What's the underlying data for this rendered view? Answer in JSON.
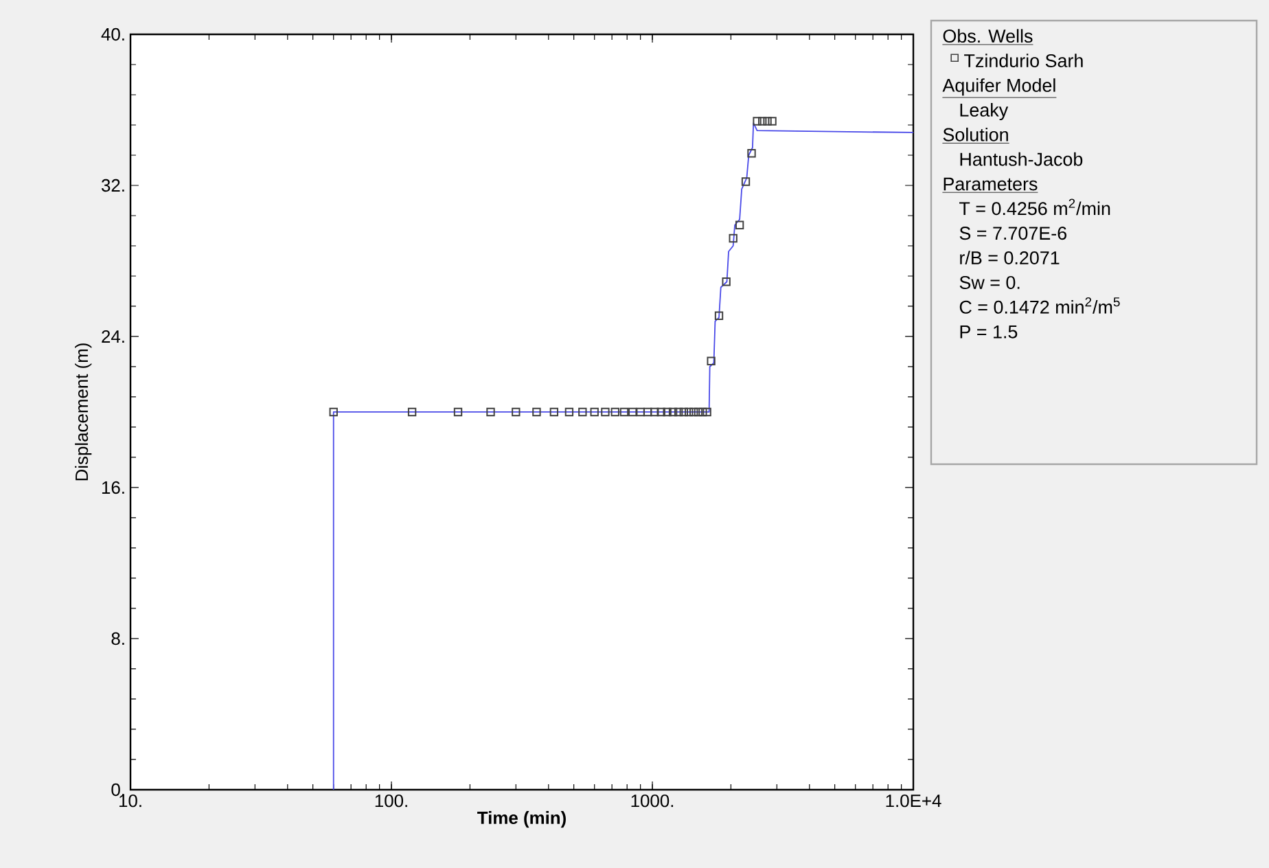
{
  "chart_data": {
    "type": "scatter",
    "xlabel": "Time (min)",
    "ylabel": "Displacement (m)",
    "log": "x",
    "xlim": [
      10,
      10000
    ],
    "ylim": [
      0,
      40
    ],
    "xticks": [
      {
        "value": 10,
        "label": "10."
      },
      {
        "value": 100,
        "label": "100."
      },
      {
        "value": 1000,
        "label": "1000."
      },
      {
        "value": 10000,
        "label": "1.0E+4"
      }
    ],
    "yticks": [
      {
        "value": 0,
        "label": "0."
      },
      {
        "value": 8,
        "label": "8."
      },
      {
        "value": 16,
        "label": "16."
      },
      {
        "value": 24,
        "label": "24."
      },
      {
        "value": 32,
        "label": "32."
      },
      {
        "value": 40,
        "label": "40."
      }
    ],
    "grid": false,
    "legend": "right",
    "series": [
      {
        "name": "Tzindurio Sarh",
        "marker": "square",
        "color": "#404040",
        "x": [
          60,
          120,
          180,
          240,
          300,
          360,
          420,
          480,
          540,
          600,
          660,
          720,
          780,
          840,
          900,
          960,
          1020,
          1080,
          1140,
          1200,
          1260,
          1320,
          1380,
          1440,
          1500,
          1560,
          1620,
          1680,
          1800,
          1920,
          2040,
          2160,
          2280,
          2400,
          2520,
          2640,
          2760,
          2880
        ],
        "values": [
          20,
          20,
          20,
          20,
          20,
          20,
          20,
          20,
          20,
          20,
          20,
          20,
          20,
          20,
          20,
          20,
          20,
          20,
          20,
          20,
          20,
          20,
          20,
          20,
          20,
          20,
          20,
          22.7,
          25.1,
          26.9,
          29.2,
          29.9,
          32.2,
          33.7,
          35.4,
          35.4,
          35.4,
          35.4
        ]
      },
      {
        "type": "line",
        "marker": "none",
        "color": "#4848e8",
        "x": [
          60,
          60,
          1650,
          1660,
          1720,
          1740,
          1800,
          1830,
          1930,
          1960,
          2040,
          2070,
          2160,
          2200,
          2300,
          2340,
          2420,
          2440,
          2520,
          10000
        ],
        "values": [
          0,
          20,
          20,
          22.4,
          22.6,
          24.8,
          25,
          26.6,
          26.9,
          28.5,
          28.8,
          29.9,
          30.2,
          31.8,
          32.4,
          33.6,
          34.0,
          35.3,
          34.9,
          34.8
        ]
      }
    ],
    "annotations": [
      "Obs. Wells",
      "Aquifer Model",
      "Leaky",
      "Solution",
      "Hantush-Jacob",
      "Parameters",
      "T = 0.4256 m$^{2}$/min",
      "S = 7.707E-6",
      "r/B = 0.2071",
      "Sw = 0.",
      "C = 0.1472 min$^{2}$/m$^{5}$",
      "P = 1.5"
    ]
  }
}
